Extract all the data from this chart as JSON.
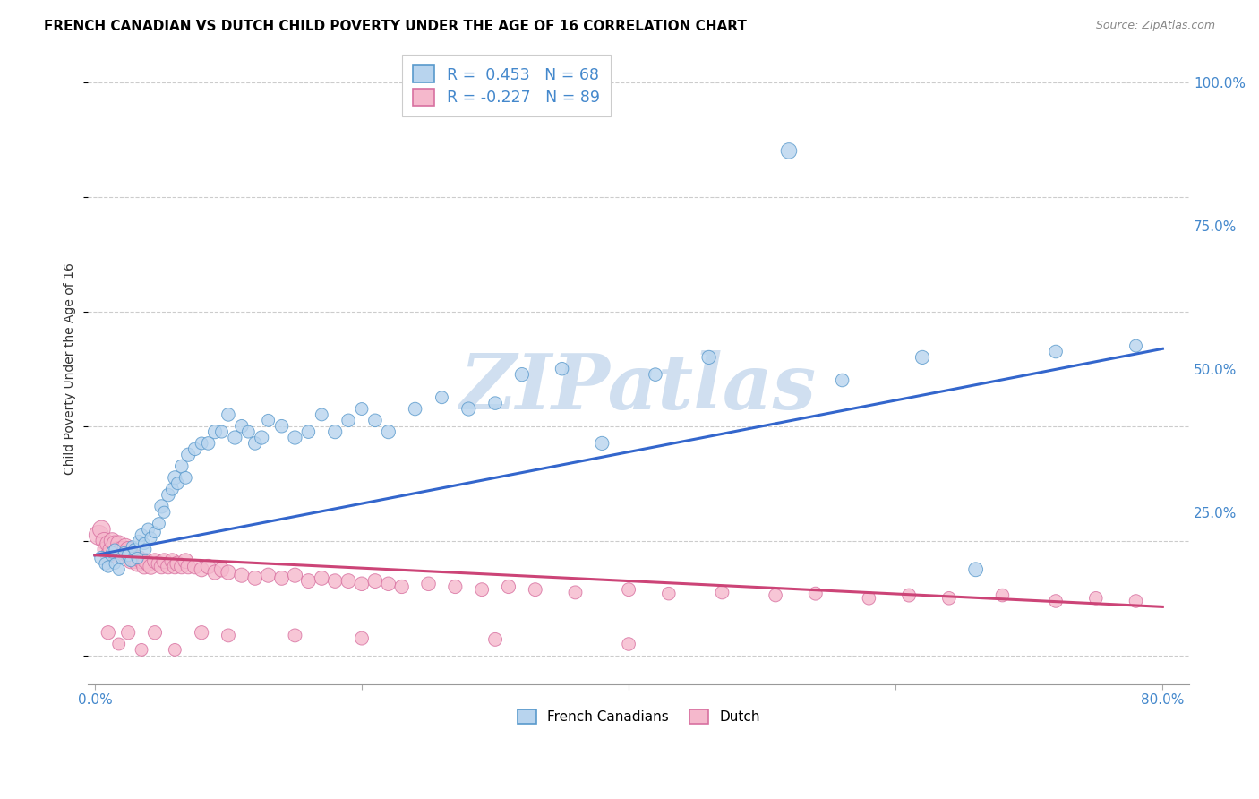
{
  "title": "FRENCH CANADIAN VS DUTCH CHILD POVERTY UNDER THE AGE OF 16 CORRELATION CHART",
  "source": "Source: ZipAtlas.com",
  "ylabel": "Child Poverty Under the Age of 16",
  "xlim": [
    -0.005,
    0.82
  ],
  "ylim": [
    -0.05,
    1.05
  ],
  "xticks": [
    0.0,
    0.2,
    0.4,
    0.6,
    0.8
  ],
  "xtick_labels": [
    "0.0%",
    "",
    "",
    "",
    "80.0%"
  ],
  "ytick_positions": [
    0.25,
    0.5,
    0.75,
    1.0
  ],
  "ytick_labels": [
    "25.0%",
    "50.0%",
    "75.0%",
    "100.0%"
  ],
  "blue_fill": "#b8d4ee",
  "blue_edge": "#5899cc",
  "pink_fill": "#f5b8cc",
  "pink_edge": "#d870a0",
  "blue_line": "#3366cc",
  "pink_line": "#cc4477",
  "axis_tick_color": "#4488cc",
  "watermark": "ZIPatlas",
  "watermark_color": "#d0dff0",
  "blue_line_x0": 0.0,
  "blue_line_y0": 0.175,
  "blue_line_x1": 0.8,
  "blue_line_y1": 0.535,
  "pink_line_x0": 0.0,
  "pink_line_y0": 0.175,
  "pink_line_x1": 0.8,
  "pink_line_y1": 0.085,
  "grid_color": "#cccccc",
  "blue_x": [
    0.005,
    0.008,
    0.01,
    0.012,
    0.013,
    0.015,
    0.015,
    0.018,
    0.02,
    0.022,
    0.025,
    0.027,
    0.028,
    0.03,
    0.032,
    0.033,
    0.035,
    0.037,
    0.038,
    0.04,
    0.042,
    0.045,
    0.048,
    0.05,
    0.052,
    0.055,
    0.058,
    0.06,
    0.062,
    0.065,
    0.068,
    0.07,
    0.075,
    0.08,
    0.085,
    0.09,
    0.095,
    0.1,
    0.105,
    0.11,
    0.115,
    0.12,
    0.125,
    0.13,
    0.14,
    0.15,
    0.16,
    0.17,
    0.18,
    0.19,
    0.2,
    0.21,
    0.22,
    0.24,
    0.26,
    0.28,
    0.3,
    0.32,
    0.35,
    0.38,
    0.42,
    0.46,
    0.52,
    0.56,
    0.62,
    0.66,
    0.72,
    0.78
  ],
  "blue_y": [
    0.17,
    0.16,
    0.155,
    0.175,
    0.18,
    0.185,
    0.16,
    0.15,
    0.17,
    0.18,
    0.175,
    0.165,
    0.19,
    0.185,
    0.17,
    0.2,
    0.21,
    0.195,
    0.185,
    0.22,
    0.205,
    0.215,
    0.23,
    0.26,
    0.25,
    0.28,
    0.29,
    0.31,
    0.3,
    0.33,
    0.31,
    0.35,
    0.36,
    0.37,
    0.37,
    0.39,
    0.39,
    0.42,
    0.38,
    0.4,
    0.39,
    0.37,
    0.38,
    0.41,
    0.4,
    0.38,
    0.39,
    0.42,
    0.39,
    0.41,
    0.43,
    0.41,
    0.39,
    0.43,
    0.45,
    0.43,
    0.44,
    0.49,
    0.5,
    0.37,
    0.49,
    0.52,
    0.88,
    0.48,
    0.52,
    0.15,
    0.53,
    0.54
  ],
  "blue_s": [
    120,
    100,
    90,
    80,
    90,
    85,
    80,
    90,
    85,
    80,
    100,
    90,
    85,
    100,
    90,
    85,
    100,
    90,
    85,
    100,
    90,
    85,
    100,
    120,
    90,
    110,
    100,
    120,
    100,
    110,
    100,
    120,
    110,
    100,
    110,
    120,
    100,
    110,
    120,
    110,
    100,
    110,
    120,
    100,
    110,
    120,
    110,
    100,
    120,
    110,
    100,
    110,
    120,
    110,
    100,
    120,
    110,
    120,
    110,
    120,
    110,
    120,
    160,
    110,
    120,
    130,
    110,
    100
  ],
  "pink_x": [
    0.003,
    0.005,
    0.007,
    0.008,
    0.01,
    0.01,
    0.012,
    0.013,
    0.015,
    0.015,
    0.017,
    0.018,
    0.02,
    0.02,
    0.022,
    0.023,
    0.025,
    0.025,
    0.027,
    0.028,
    0.03,
    0.03,
    0.032,
    0.033,
    0.035,
    0.037,
    0.038,
    0.04,
    0.042,
    0.045,
    0.048,
    0.05,
    0.052,
    0.055,
    0.058,
    0.06,
    0.062,
    0.065,
    0.068,
    0.07,
    0.075,
    0.08,
    0.085,
    0.09,
    0.095,
    0.1,
    0.11,
    0.12,
    0.13,
    0.14,
    0.15,
    0.16,
    0.17,
    0.18,
    0.19,
    0.2,
    0.21,
    0.22,
    0.23,
    0.25,
    0.27,
    0.29,
    0.31,
    0.33,
    0.36,
    0.4,
    0.43,
    0.47,
    0.51,
    0.54,
    0.58,
    0.61,
    0.64,
    0.68,
    0.72,
    0.75,
    0.78,
    0.01,
    0.018,
    0.025,
    0.035,
    0.045,
    0.06,
    0.08,
    0.1,
    0.15,
    0.2,
    0.3,
    0.4
  ],
  "pink_y": [
    0.21,
    0.22,
    0.2,
    0.185,
    0.195,
    0.175,
    0.185,
    0.2,
    0.195,
    0.175,
    0.185,
    0.195,
    0.175,
    0.185,
    0.18,
    0.19,
    0.175,
    0.185,
    0.165,
    0.175,
    0.17,
    0.165,
    0.16,
    0.17,
    0.165,
    0.155,
    0.165,
    0.16,
    0.155,
    0.165,
    0.16,
    0.155,
    0.165,
    0.155,
    0.165,
    0.155,
    0.16,
    0.155,
    0.165,
    0.155,
    0.155,
    0.15,
    0.155,
    0.145,
    0.15,
    0.145,
    0.14,
    0.135,
    0.14,
    0.135,
    0.14,
    0.13,
    0.135,
    0.13,
    0.13,
    0.125,
    0.13,
    0.125,
    0.12,
    0.125,
    0.12,
    0.115,
    0.12,
    0.115,
    0.11,
    0.115,
    0.108,
    0.11,
    0.105,
    0.108,
    0.1,
    0.105,
    0.1,
    0.105,
    0.095,
    0.1,
    0.095,
    0.04,
    0.02,
    0.04,
    0.01,
    0.04,
    0.01,
    0.04,
    0.035,
    0.035,
    0.03,
    0.028,
    0.02
  ],
  "pink_s": [
    250,
    200,
    180,
    160,
    170,
    155,
    160,
    170,
    165,
    155,
    160,
    170,
    155,
    165,
    155,
    165,
    155,
    165,
    155,
    165,
    155,
    145,
    155,
    145,
    155,
    145,
    155,
    145,
    155,
    145,
    145,
    140,
    145,
    140,
    145,
    140,
    145,
    140,
    145,
    140,
    140,
    135,
    140,
    135,
    140,
    135,
    135,
    130,
    135,
    130,
    135,
    130,
    130,
    125,
    130,
    125,
    130,
    125,
    120,
    125,
    120,
    115,
    120,
    115,
    115,
    115,
    110,
    115,
    110,
    115,
    110,
    115,
    110,
    110,
    110,
    110,
    110,
    120,
    100,
    120,
    100,
    120,
    100,
    120,
    115,
    115,
    115,
    115,
    110
  ]
}
